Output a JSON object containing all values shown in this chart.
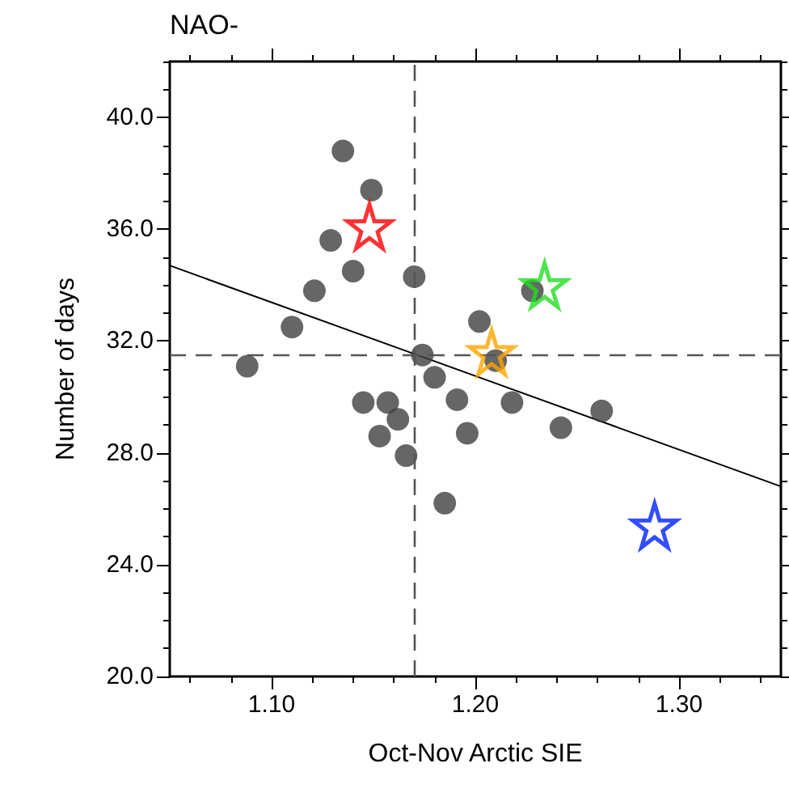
{
  "chart_data": {
    "type": "scatter",
    "title": "NAO-",
    "xlabel": "Oct-Nov Arctic SIE",
    "ylabel": "Number of days",
    "xlim": [
      1.05,
      1.35
    ],
    "ylim": [
      20,
      42
    ],
    "xticks": [
      {
        "value": 1.06,
        "label": null
      },
      {
        "value": 1.08,
        "label": null
      },
      {
        "value": 1.1,
        "label": "1.10"
      },
      {
        "value": 1.12,
        "label": null
      },
      {
        "value": 1.14,
        "label": null
      },
      {
        "value": 1.16,
        "label": null
      },
      {
        "value": 1.18,
        "label": null
      },
      {
        "value": 1.2,
        "label": "1.20"
      },
      {
        "value": 1.22,
        "label": null
      },
      {
        "value": 1.24,
        "label": null
      },
      {
        "value": 1.26,
        "label": null
      },
      {
        "value": 1.28,
        "label": null
      },
      {
        "value": 1.3,
        "label": "1.30"
      },
      {
        "value": 1.32,
        "label": null
      },
      {
        "value": 1.34,
        "label": null
      }
    ],
    "yticks": [
      {
        "value": 20,
        "label": "20.0"
      },
      {
        "value": 21,
        "label": null
      },
      {
        "value": 22,
        "label": null
      },
      {
        "value": 23,
        "label": null
      },
      {
        "value": 24,
        "label": "24.0"
      },
      {
        "value": 25,
        "label": null
      },
      {
        "value": 26,
        "label": null
      },
      {
        "value": 27,
        "label": null
      },
      {
        "value": 28,
        "label": "28.0"
      },
      {
        "value": 29,
        "label": null
      },
      {
        "value": 30,
        "label": null
      },
      {
        "value": 31,
        "label": null
      },
      {
        "value": 32,
        "label": "32.0"
      },
      {
        "value": 33,
        "label": null
      },
      {
        "value": 34,
        "label": null
      },
      {
        "value": 35,
        "label": null
      },
      {
        "value": 36,
        "label": "36.0"
      },
      {
        "value": 37,
        "label": null
      },
      {
        "value": 38,
        "label": null
      },
      {
        "value": 39,
        "label": null
      },
      {
        "value": 40,
        "label": "40.0"
      },
      {
        "value": 41,
        "label": null
      },
      {
        "value": 42,
        "label": null
      }
    ],
    "grid": false,
    "series": [
      {
        "marker": "circle",
        "color": "#404040",
        "x": [
          1.088,
          1.11,
          1.121,
          1.129,
          1.135,
          1.14,
          1.149,
          1.17,
          1.174,
          1.18,
          1.145,
          1.157,
          1.162,
          1.153,
          1.166,
          1.185,
          1.191,
          1.196,
          1.202,
          1.21,
          1.218,
          1.228,
          1.242,
          1.262
        ],
        "values": [
          31.1,
          32.5,
          33.8,
          35.6,
          38.8,
          34.5,
          37.4,
          34.3,
          31.5,
          30.7,
          29.8,
          29.8,
          29.2,
          28.6,
          27.9,
          26.2,
          29.9,
          28.7,
          32.7,
          31.3,
          29.8,
          33.8,
          28.9,
          29.5
        ]
      },
      {
        "type": "line",
        "marker": "none",
        "line_style": "solid",
        "color": "#000000",
        "x": [
          1.05,
          1.35
        ],
        "values": [
          34.7,
          26.8
        ]
      },
      {
        "type": "scatter",
        "marker": "star",
        "color": "#ff0000",
        "x": [
          1.148
        ],
        "values": [
          36.1
        ]
      },
      {
        "type": "scatter",
        "marker": "star",
        "color": "#22dd22",
        "x": [
          1.234
        ],
        "values": [
          34.0
        ]
      },
      {
        "type": "scatter",
        "marker": "star",
        "color": "#ffa500",
        "x": [
          1.208
        ],
        "values": [
          31.6
        ]
      },
      {
        "type": "scatter",
        "marker": "star",
        "color": "#0022ff",
        "x": [
          1.288
        ],
        "values": [
          25.4
        ]
      }
    ],
    "ref_lines": [
      {
        "axis": "x",
        "value": 1.171,
        "color": "#555555",
        "line_style": "dashed"
      },
      {
        "axis": "y",
        "value": 31.5,
        "color": "#555555",
        "line_style": "dashed"
      }
    ]
  }
}
